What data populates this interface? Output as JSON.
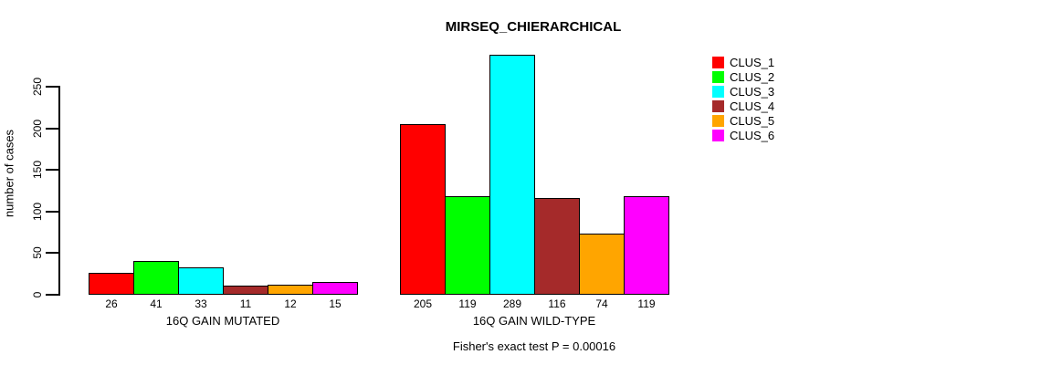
{
  "title": "MIRSEQ_CHIERARCHICAL",
  "chart_data": {
    "type": "bar",
    "title": "MIRSEQ_CHIERARCHICAL",
    "xlabel": "",
    "ylabel": "number of cases",
    "ylim": [
      0,
      289
    ],
    "yticks": [
      0,
      50,
      100,
      150,
      200,
      250
    ],
    "grid": false,
    "legend_position": "right",
    "annotation": "Fisher's exact test P = 0.00016",
    "categories": [
      "16Q GAIN MUTATED",
      "16Q GAIN WILD-TYPE"
    ],
    "bar_value_labels_shown": true,
    "series": [
      {
        "name": "CLUS_1",
        "color": "#FF0000",
        "values": [
          26,
          205
        ]
      },
      {
        "name": "CLUS_2",
        "color": "#00FF00",
        "values": [
          41,
          119
        ]
      },
      {
        "name": "CLUS_3",
        "color": "#00FFFF",
        "values": [
          33,
          289
        ]
      },
      {
        "name": "CLUS_4",
        "color": "#A52A2A",
        "values": [
          11,
          116
        ]
      },
      {
        "name": "CLUS_5",
        "color": "#FFA500",
        "values": [
          12,
          74
        ]
      },
      {
        "name": "CLUS_6",
        "color": "#FF00FF",
        "values": [
          15,
          119
        ]
      }
    ]
  }
}
